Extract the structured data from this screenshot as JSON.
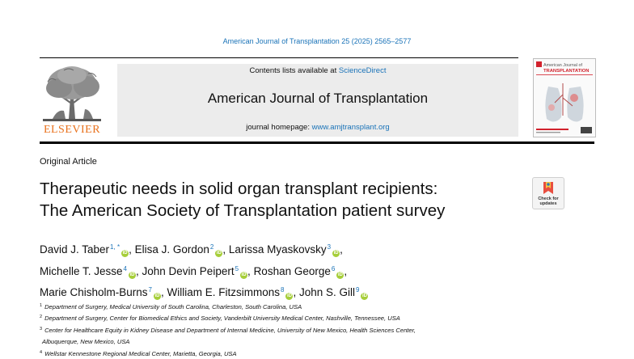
{
  "citation": "American Journal of Transplantation 25 (2025) 2565–2577",
  "publisher": {
    "wordmark": "ELSEVIER"
  },
  "masthead": {
    "contents_prefix": "Contents lists available at ",
    "contents_link": "ScienceDirect",
    "journal_name": "American Journal of Transplantation",
    "homepage_prefix": "journal homepage: ",
    "homepage_link": "www.amjtransplant.org"
  },
  "cover": {
    "title_line1": "American Journal of",
    "title_line2": "TRANSPLANTATION",
    "accent_color": "#d2222d"
  },
  "article": {
    "type": "Original Article",
    "title_line1": "Therapeutic needs in solid organ transplant recipients:",
    "title_line2": "The American Society of Transplantation patient survey",
    "check_updates": "Check for updates"
  },
  "authors": [
    {
      "name": "David J. Taber",
      "sup": "1, *"
    },
    {
      "name": "Elisa J. Gordon",
      "sup": "2"
    },
    {
      "name": "Larissa Myaskovsky",
      "sup": "3"
    },
    {
      "name": "Michelle T. Jesse",
      "sup": "4"
    },
    {
      "name": "John Devin Peipert",
      "sup": "5"
    },
    {
      "name": "Roshan George",
      "sup": "6"
    },
    {
      "name": "Marie Chisholm-Burns",
      "sup": "7"
    },
    {
      "name": "William E. Fitzsimmons",
      "sup": "8"
    },
    {
      "name": "John S. Gill",
      "sup": "9"
    }
  ],
  "affiliations": [
    {
      "num": "1",
      "text": "Department of Surgery, Medical University of South Carolina, Charleston, South Carolina, USA"
    },
    {
      "num": "2",
      "text": "Department of Surgery, Center for Biomedical Ethics and Society, Vanderbilt University Medical Center, Nashville, Tennessee, USA"
    },
    {
      "num": "3",
      "text": "Center for Healthcare Equity in Kidney Disease and Department of Internal Medicine, University of New Mexico, Health Sciences Center,"
    },
    {
      "num": "",
      "text": "Albuquerque, New Mexico, USA"
    },
    {
      "num": "4",
      "text": "Wellstar Kennestone Regional Medical Center, Marietta, Georgia, USA"
    }
  ]
}
